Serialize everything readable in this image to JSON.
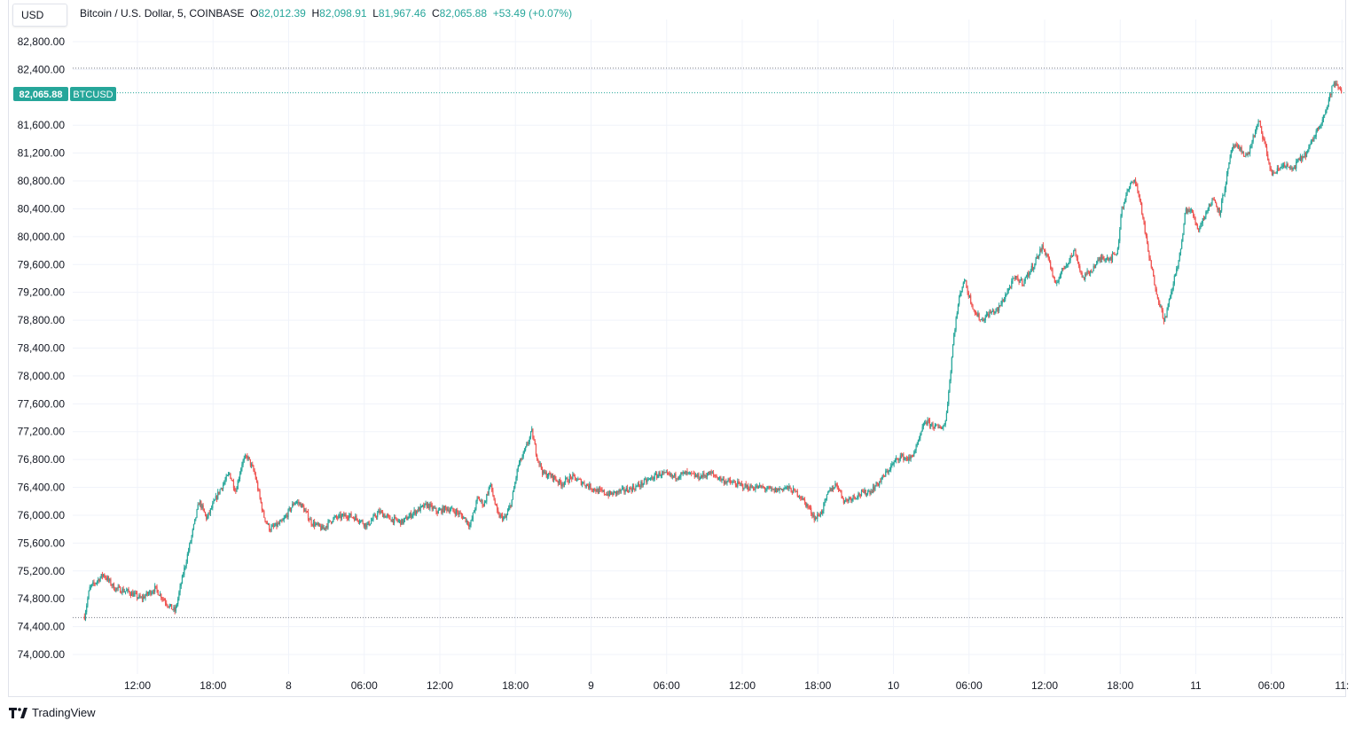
{
  "toolbar": {
    "currency": "USD"
  },
  "legend": {
    "symbol": "Bitcoin / U.S. Dollar, 5, COINBASE",
    "o_label": "O",
    "o_value": "82,012.39",
    "h_label": "H",
    "h_value": "82,098.91",
    "l_label": "L",
    "l_value": "81,967.46",
    "c_label": "C",
    "c_value": "82,065.88",
    "change": "+53.49 (+0.07%)"
  },
  "price_tag": {
    "value": "82,065.88",
    "symbol": "BTCUSD"
  },
  "brand": {
    "name": "TradingView",
    "icon": "tradingview-logo-icon"
  },
  "colors": {
    "up": "#26a69a",
    "down": "#ef5350",
    "grid": "#f0f3fa",
    "accent": "#26a69a"
  },
  "chart_data": {
    "type": "candlestick",
    "title": "Bitcoin / U.S. Dollar, 5, COINBASE",
    "ylim": [
      73800,
      82900
    ],
    "y_ticks": [
      {
        "value": 82800,
        "label": "82,800.00"
      },
      {
        "value": 82400,
        "label": "82,400.00"
      },
      {
        "value": 81600,
        "label": "81,600.00"
      },
      {
        "value": 81200,
        "label": "81,200.00"
      },
      {
        "value": 80800,
        "label": "80,800.00"
      },
      {
        "value": 80400,
        "label": "80,400.00"
      },
      {
        "value": 80000,
        "label": "80,000.00"
      },
      {
        "value": 79600,
        "label": "79,600.00"
      },
      {
        "value": 79200,
        "label": "79,200.00"
      },
      {
        "value": 78800,
        "label": "78,800.00"
      },
      {
        "value": 78400,
        "label": "78,400.00"
      },
      {
        "value": 78000,
        "label": "78,000.00"
      },
      {
        "value": 77600,
        "label": "77,600.00"
      },
      {
        "value": 77200,
        "label": "77,200.00"
      },
      {
        "value": 76800,
        "label": "76,800.00"
      },
      {
        "value": 76400,
        "label": "76,400.00"
      },
      {
        "value": 76000,
        "label": "76,000.00"
      },
      {
        "value": 75600,
        "label": "75,600.00"
      },
      {
        "value": 75200,
        "label": "75,200.00"
      },
      {
        "value": 74800,
        "label": "74,800.00"
      },
      {
        "value": 74400,
        "label": "74,400.00"
      },
      {
        "value": 74000,
        "label": "74,000.00"
      }
    ],
    "x_ticks": [
      {
        "label": "12:00",
        "hour": 12
      },
      {
        "label": "18:00",
        "hour": 18
      },
      {
        "label": "8",
        "hour": 24
      },
      {
        "label": "06:00",
        "hour": 30
      },
      {
        "label": "12:00",
        "hour": 36
      },
      {
        "label": "18:00",
        "hour": 42
      },
      {
        "label": "9",
        "hour": 48
      },
      {
        "label": "06:00",
        "hour": 54
      },
      {
        "label": "12:00",
        "hour": 60
      },
      {
        "label": "18:00",
        "hour": 66
      },
      {
        "label": "10",
        "hour": 72
      },
      {
        "label": "06:00",
        "hour": 78
      },
      {
        "label": "12:00",
        "hour": 84
      },
      {
        "label": "18:00",
        "hour": 90
      },
      {
        "label": "11",
        "hour": 96
      },
      {
        "label": "06:00",
        "hour": 102
      },
      {
        "label": "11:",
        "hour": 107.6
      }
    ],
    "x_range_hours": [
      7.8,
      108.5
    ],
    "candle_interval_minutes": 5,
    "high_line": 82420,
    "low_line": 74530,
    "last_price": 82065.88,
    "price_path": [
      [
        7.8,
        74550
      ],
      [
        8.2,
        74950
      ],
      [
        9.3,
        75150
      ],
      [
        10.2,
        74950
      ],
      [
        11.3,
        74900
      ],
      [
        12.3,
        74800
      ],
      [
        13.4,
        74950
      ],
      [
        14.5,
        74700
      ],
      [
        15.0,
        74620
      ],
      [
        15.5,
        75050
      ],
      [
        16.3,
        75700
      ],
      [
        16.9,
        76200
      ],
      [
        17.5,
        75950
      ],
      [
        18.5,
        76350
      ],
      [
        19.3,
        76600
      ],
      [
        19.8,
        76350
      ],
      [
        20.3,
        76750
      ],
      [
        20.7,
        76850
      ],
      [
        21.3,
        76600
      ],
      [
        22.0,
        76000
      ],
      [
        22.5,
        75800
      ],
      [
        23.5,
        75900
      ],
      [
        24.5,
        76200
      ],
      [
        25.0,
        76150
      ],
      [
        25.8,
        75900
      ],
      [
        26.7,
        75800
      ],
      [
        27.5,
        75950
      ],
      [
        28.7,
        76000
      ],
      [
        29.5,
        75950
      ],
      [
        30.2,
        75850
      ],
      [
        31.2,
        76050
      ],
      [
        32.0,
        75950
      ],
      [
        33.0,
        75900
      ],
      [
        34.0,
        76050
      ],
      [
        35.0,
        76150
      ],
      [
        35.8,
        76050
      ],
      [
        36.5,
        76100
      ],
      [
        37.3,
        76050
      ],
      [
        38.0,
        75950
      ],
      [
        38.4,
        75850
      ],
      [
        39.0,
        76250
      ],
      [
        39.5,
        76150
      ],
      [
        40.0,
        76450
      ],
      [
        40.6,
        76000
      ],
      [
        41.2,
        75950
      ],
      [
        41.7,
        76200
      ],
      [
        42.2,
        76700
      ],
      [
        42.7,
        76900
      ],
      [
        43.3,
        77200
      ],
      [
        43.7,
        76850
      ],
      [
        44.2,
        76600
      ],
      [
        45.0,
        76550
      ],
      [
        45.6,
        76450
      ],
      [
        46.5,
        76550
      ],
      [
        47.5,
        76450
      ],
      [
        48.5,
        76350
      ],
      [
        49.5,
        76300
      ],
      [
        50.5,
        76350
      ],
      [
        51.5,
        76400
      ],
      [
        52.5,
        76500
      ],
      [
        53.5,
        76600
      ],
      [
        54.5,
        76550
      ],
      [
        55.5,
        76600
      ],
      [
        56.5,
        76550
      ],
      [
        57.5,
        76600
      ],
      [
        58.5,
        76500
      ],
      [
        59.5,
        76450
      ],
      [
        60.5,
        76400
      ],
      [
        61.5,
        76400
      ],
      [
        62.5,
        76350
      ],
      [
        63.5,
        76400
      ],
      [
        64.5,
        76300
      ],
      [
        65.3,
        76100
      ],
      [
        65.8,
        75950
      ],
      [
        66.3,
        76050
      ],
      [
        66.9,
        76350
      ],
      [
        67.5,
        76450
      ],
      [
        68.1,
        76200
      ],
      [
        68.6,
        76250
      ],
      [
        69.3,
        76300
      ],
      [
        70.2,
        76350
      ],
      [
        71.0,
        76500
      ],
      [
        71.8,
        76700
      ],
      [
        72.5,
        76850
      ],
      [
        73.3,
        76800
      ],
      [
        73.9,
        77000
      ],
      [
        74.5,
        77350
      ],
      [
        75.0,
        77300
      ],
      [
        75.6,
        77250
      ],
      [
        76.1,
        77300
      ],
      [
        76.4,
        77800
      ],
      [
        76.8,
        78600
      ],
      [
        77.2,
        79100
      ],
      [
        77.6,
        79400
      ],
      [
        78.0,
        79150
      ],
      [
        78.5,
        78900
      ],
      [
        79.0,
        78800
      ],
      [
        79.6,
        78900
      ],
      [
        80.3,
        78950
      ],
      [
        81.0,
        79200
      ],
      [
        81.6,
        79400
      ],
      [
        82.3,
        79350
      ],
      [
        83.0,
        79550
      ],
      [
        83.8,
        79850
      ],
      [
        84.3,
        79700
      ],
      [
        84.8,
        79300
      ],
      [
        85.5,
        79550
      ],
      [
        86.4,
        79800
      ],
      [
        87.0,
        79400
      ],
      [
        87.6,
        79500
      ],
      [
        88.5,
        79700
      ],
      [
        89.3,
        79700
      ],
      [
        89.8,
        79800
      ],
      [
        90.1,
        80400
      ],
      [
        90.6,
        80650
      ],
      [
        91.1,
        80850
      ],
      [
        91.6,
        80500
      ],
      [
        92.2,
        79800
      ],
      [
        92.7,
        79350
      ],
      [
        93.1,
        79050
      ],
      [
        93.5,
        78800
      ],
      [
        93.8,
        79000
      ],
      [
        94.3,
        79400
      ],
      [
        94.8,
        79800
      ],
      [
        95.2,
        80400
      ],
      [
        95.7,
        80350
      ],
      [
        96.2,
        80100
      ],
      [
        96.8,
        80350
      ],
      [
        97.4,
        80550
      ],
      [
        97.9,
        80350
      ],
      [
        98.4,
        80800
      ],
      [
        98.9,
        81300
      ],
      [
        99.5,
        81250
      ],
      [
        100.1,
        81150
      ],
      [
        100.6,
        81450
      ],
      [
        101.0,
        81650
      ],
      [
        101.5,
        81300
      ],
      [
        102.0,
        80900
      ],
      [
        102.5,
        80950
      ],
      [
        103.0,
        81050
      ],
      [
        103.6,
        80950
      ],
      [
        104.2,
        81100
      ],
      [
        104.8,
        81200
      ],
      [
        105.3,
        81400
      ],
      [
        105.8,
        81600
      ],
      [
        106.4,
        81850
      ],
      [
        106.9,
        82200
      ],
      [
        107.3,
        82150
      ],
      [
        107.6,
        82065.88
      ]
    ]
  }
}
